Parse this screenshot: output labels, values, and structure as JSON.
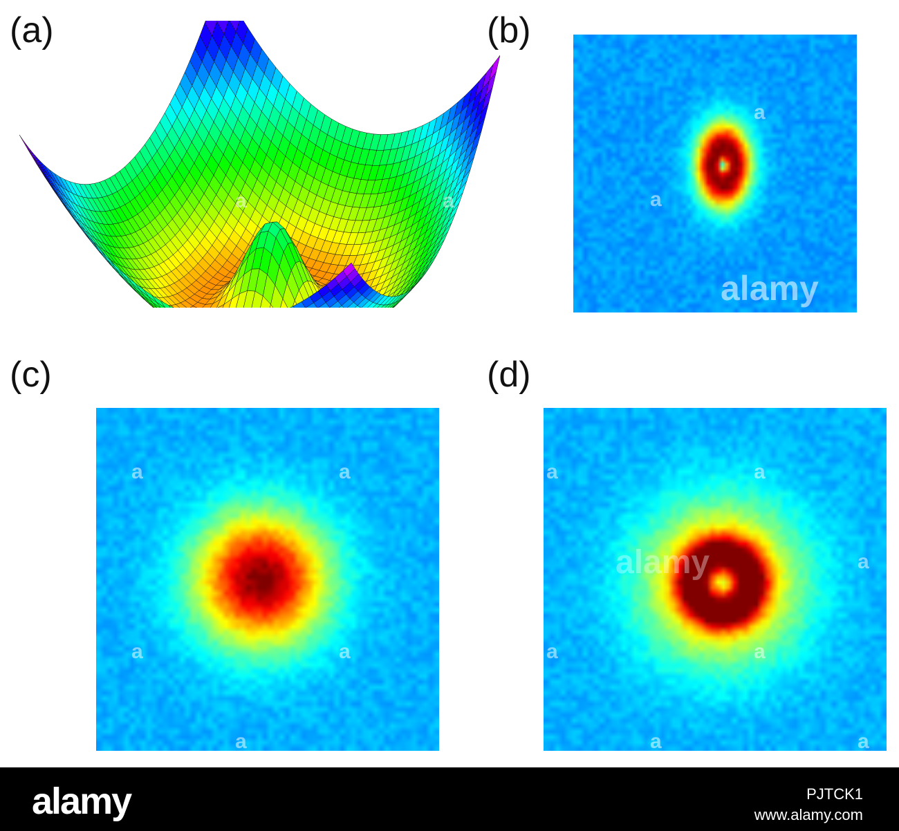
{
  "panels": [
    {
      "id": "a",
      "label": "(a)"
    },
    {
      "id": "b",
      "label": "(b)"
    },
    {
      "id": "c",
      "label": "(c)"
    },
    {
      "id": "d",
      "label": "(d)"
    }
  ],
  "watermark": {
    "text": "alamy",
    "letter": "a"
  },
  "footer": {
    "logo": "alamy",
    "image_id": "PJTCK1",
    "url": "www.alamy.com"
  },
  "colors": {
    "background_blue": "#1f55ee",
    "footer": "#000000"
  }
}
